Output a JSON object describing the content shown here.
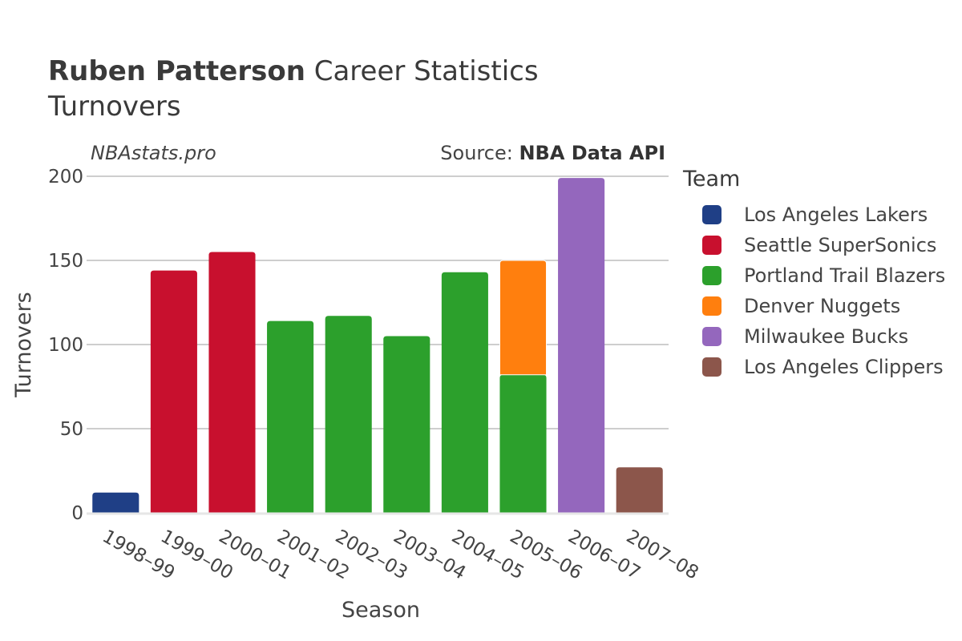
{
  "header": {
    "title_bold": "Ruben Patterson",
    "title_rest": " Career Statistics",
    "subtitle": "Turnovers",
    "brand": "NBAstats.pro",
    "source_prefix": "Source: ",
    "source_name": "NBA Data API"
  },
  "legend": {
    "title": "Team",
    "items": [
      {
        "label": "Los Angeles Lakers",
        "color": "#1f3f86"
      },
      {
        "label": "Seattle SuperSonics",
        "color": "#c8102e"
      },
      {
        "label": "Portland Trail Blazers",
        "color": "#2ca02c"
      },
      {
        "label": "Denver Nuggets",
        "color": "#ff7f0e"
      },
      {
        "label": "Milwaukee Bucks",
        "color": "#9467bd"
      },
      {
        "label": "Los Angeles Clippers",
        "color": "#8c564b"
      }
    ]
  },
  "chart_data": {
    "type": "bar",
    "stacked": true,
    "xlabel": "Season",
    "ylabel": "Turnovers",
    "ylim": [
      0,
      200
    ],
    "yticks": [
      0,
      50,
      100,
      150,
      200
    ],
    "grid": true,
    "legend_position": "right",
    "categories": [
      "1998-99",
      "1999-00",
      "2000-01",
      "2001-02",
      "2002-03",
      "2003-04",
      "2004-05",
      "2005-06",
      "2006-07",
      "2007-08"
    ],
    "category_labels": [
      "1998–99",
      "1999–00",
      "2000–01",
      "2001–02",
      "2002–03",
      "2003–04",
      "2004–05",
      "2005–06",
      "2006–07",
      "2007–08"
    ],
    "series": [
      {
        "name": "Los Angeles Lakers",
        "color": "#1f3f86",
        "values": [
          12,
          0,
          0,
          0,
          0,
          0,
          0,
          0,
          0,
          0
        ]
      },
      {
        "name": "Seattle SuperSonics",
        "color": "#c8102e",
        "values": [
          0,
          144,
          155,
          0,
          0,
          0,
          0,
          0,
          0,
          0
        ]
      },
      {
        "name": "Portland Trail Blazers",
        "color": "#2ca02c",
        "values": [
          0,
          0,
          0,
          114,
          117,
          105,
          143,
          82,
          0,
          0
        ]
      },
      {
        "name": "Denver Nuggets",
        "color": "#ff7f0e",
        "values": [
          0,
          0,
          0,
          0,
          0,
          0,
          0,
          68,
          0,
          0
        ]
      },
      {
        "name": "Milwaukee Bucks",
        "color": "#9467bd",
        "values": [
          0,
          0,
          0,
          0,
          0,
          0,
          0,
          0,
          199,
          0
        ]
      },
      {
        "name": "Los Angeles Clippers",
        "color": "#8c564b",
        "values": [
          0,
          0,
          0,
          0,
          0,
          0,
          0,
          0,
          0,
          27
        ]
      }
    ]
  }
}
